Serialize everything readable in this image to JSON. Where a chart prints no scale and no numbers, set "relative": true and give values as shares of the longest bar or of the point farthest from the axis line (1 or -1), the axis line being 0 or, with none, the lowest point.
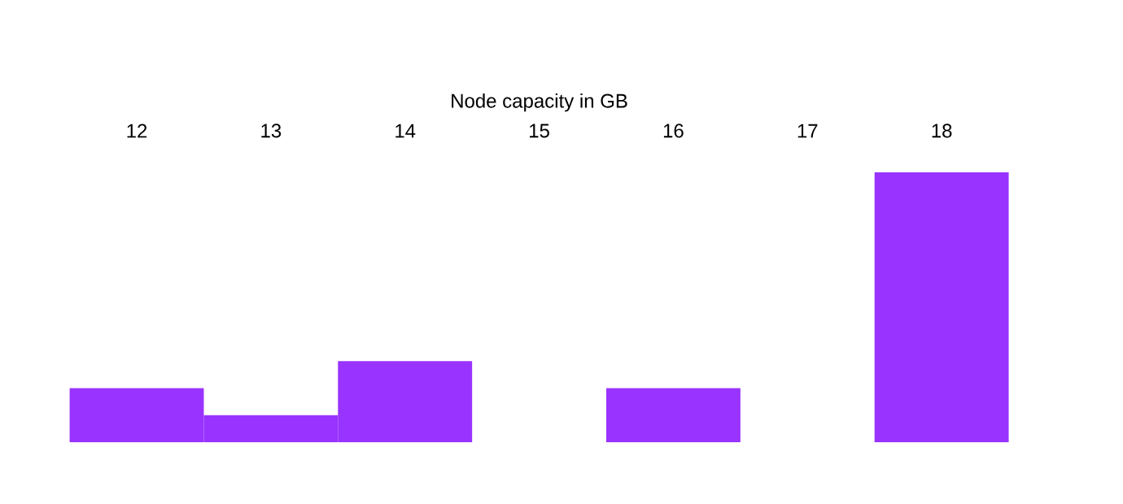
{
  "chart_data": {
    "type": "bar",
    "title": "Node capacity in GB",
    "categories": [
      "12",
      "13",
      "14",
      "15",
      "16",
      "17",
      "18"
    ],
    "values": [
      0.2,
      0.1,
      0.3,
      0,
      0.2,
      0,
      1
    ],
    "color": "#9933ff",
    "relative": true
  }
}
